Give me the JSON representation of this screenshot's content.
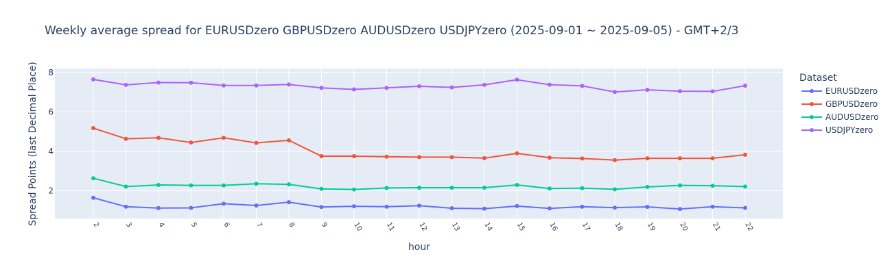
{
  "chart_data": {
    "type": "line",
    "title": "Weekly average spread for  EURUSDzero GBPUSDzero AUDUSDzero USDJPYzero (2025-09-01 ~ 2025-09-05) - GMT+2/3",
    "xlabel": "hour",
    "ylabel": "Spread Points (last Decimal Place)",
    "x": [
      "2",
      "3",
      "4",
      "5",
      "6",
      "7",
      "8",
      "9",
      "10",
      "11",
      "12",
      "13",
      "14",
      "15",
      "16",
      "17",
      "18",
      "19",
      "20",
      "21",
      "22"
    ],
    "ylim": [
      0.6,
      8.2
    ],
    "yticks": [
      2,
      4,
      6,
      8
    ],
    "grid": true,
    "legend_position": "right",
    "legend_title": "Dataset",
    "series": [
      {
        "name": "EURUSDzero",
        "color": "#636efa",
        "values": [
          1.65,
          1.2,
          1.13,
          1.14,
          1.35,
          1.26,
          1.43,
          1.18,
          1.22,
          1.2,
          1.25,
          1.12,
          1.1,
          1.23,
          1.11,
          1.2,
          1.15,
          1.19,
          1.08,
          1.2,
          1.14
        ]
      },
      {
        "name": "GBPUSDzero",
        "color": "#ef553b",
        "values": [
          5.18,
          4.64,
          4.69,
          4.45,
          4.69,
          4.43,
          4.56,
          3.76,
          3.76,
          3.73,
          3.71,
          3.71,
          3.66,
          3.9,
          3.68,
          3.64,
          3.56,
          3.65,
          3.65,
          3.65,
          3.83
        ]
      },
      {
        "name": "AUDUSDzero",
        "color": "#00cc96",
        "values": [
          2.64,
          2.22,
          2.3,
          2.28,
          2.28,
          2.36,
          2.33,
          2.1,
          2.07,
          2.15,
          2.16,
          2.16,
          2.16,
          2.3,
          2.12,
          2.14,
          2.08,
          2.2,
          2.28,
          2.26,
          2.22
        ]
      },
      {
        "name": "USDJPYzero",
        "color": "#ab63fa",
        "values": [
          7.65,
          7.37,
          7.49,
          7.48,
          7.34,
          7.34,
          7.39,
          7.22,
          7.14,
          7.22,
          7.3,
          7.24,
          7.37,
          7.63,
          7.38,
          7.32,
          7.01,
          7.12,
          7.05,
          7.04,
          7.33
        ]
      }
    ]
  }
}
